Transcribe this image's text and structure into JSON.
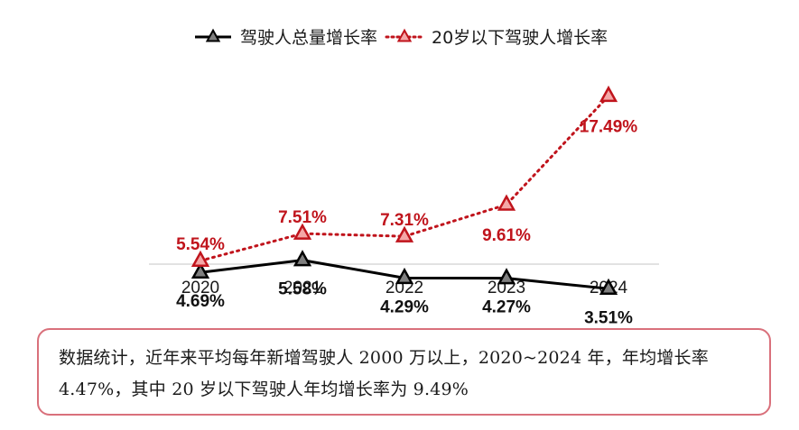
{
  "chart_data": {
    "type": "line",
    "categories": [
      "2020",
      "2021",
      "2022",
      "2023",
      "2024"
    ],
    "series": [
      {
        "name": "驾驶人总量增长率",
        "values": [
          4.69,
          5.58,
          4.29,
          4.27,
          3.51
        ],
        "labels": [
          "4.69%",
          "5.58%",
          "4.29%",
          "4.27%",
          "3.51%"
        ],
        "color": "#000000",
        "marker_fill": "#7f7f7f",
        "line_style": "solid",
        "marker": "triangle"
      },
      {
        "name": "20岁以下驾驶人增长率",
        "values": [
          5.54,
          7.51,
          7.31,
          9.61,
          17.49
        ],
        "labels": [
          "5.54%",
          "7.51%",
          "7.31%",
          "9.61%",
          "17.49%"
        ],
        "color": "#c0141c",
        "marker_fill": "#f4a7a7",
        "line_style": "dotted",
        "marker": "triangle"
      }
    ],
    "ylim": [
      0,
      20
    ],
    "grid": false,
    "legend_position": "top-center",
    "title": "",
    "xlabel": "",
    "ylabel": ""
  },
  "note": {
    "text": "数据统计，近年来平均每年新增驾驶人 2000 万以上，2020~2024 年，年均增长率 4.47%，其中 20 岁以下驾驶人年均增长率为 9.49%"
  }
}
